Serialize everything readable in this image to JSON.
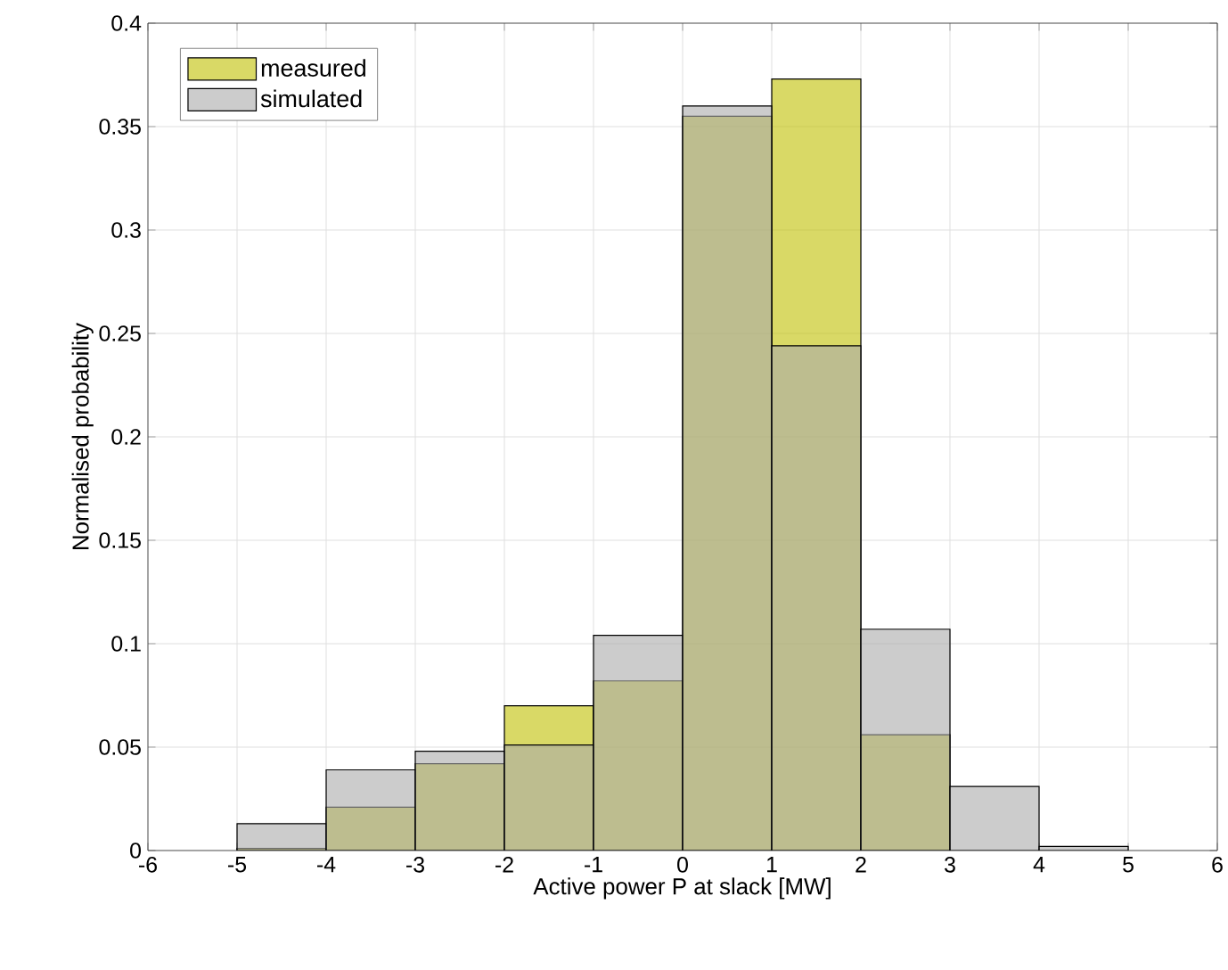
{
  "chart_data": {
    "type": "histogram",
    "xlabel": "Active power P at slack [MW]",
    "ylabel": "Normalised probability",
    "bins": [
      -6,
      -5,
      -4,
      -3,
      -2,
      -1,
      0,
      1,
      2,
      3,
      4,
      5,
      6
    ],
    "series": [
      {
        "name": "measured",
        "color": "#bfbf00",
        "values": [
          0,
          0.001,
          0.021,
          0.042,
          0.07,
          0.082,
          0.355,
          0.373,
          0.056,
          0,
          0,
          0
        ]
      },
      {
        "name": "simulated",
        "color": "#aaaaaa",
        "values": [
          0,
          0.013,
          0.039,
          0.048,
          0.051,
          0.104,
          0.36,
          0.244,
          0.107,
          0.031,
          0.002,
          0
        ]
      }
    ],
    "xlim": [
      -6,
      6
    ],
    "ylim": [
      0,
      0.4
    ],
    "xticks": [
      -6,
      -5,
      -4,
      -3,
      -2,
      -1,
      0,
      1,
      2,
      3,
      4,
      5,
      6
    ],
    "yticks": [
      0,
      0.05,
      0.1,
      0.15,
      0.2,
      0.25,
      0.3,
      0.35,
      0.4
    ],
    "grid": true,
    "legend": "top left"
  }
}
